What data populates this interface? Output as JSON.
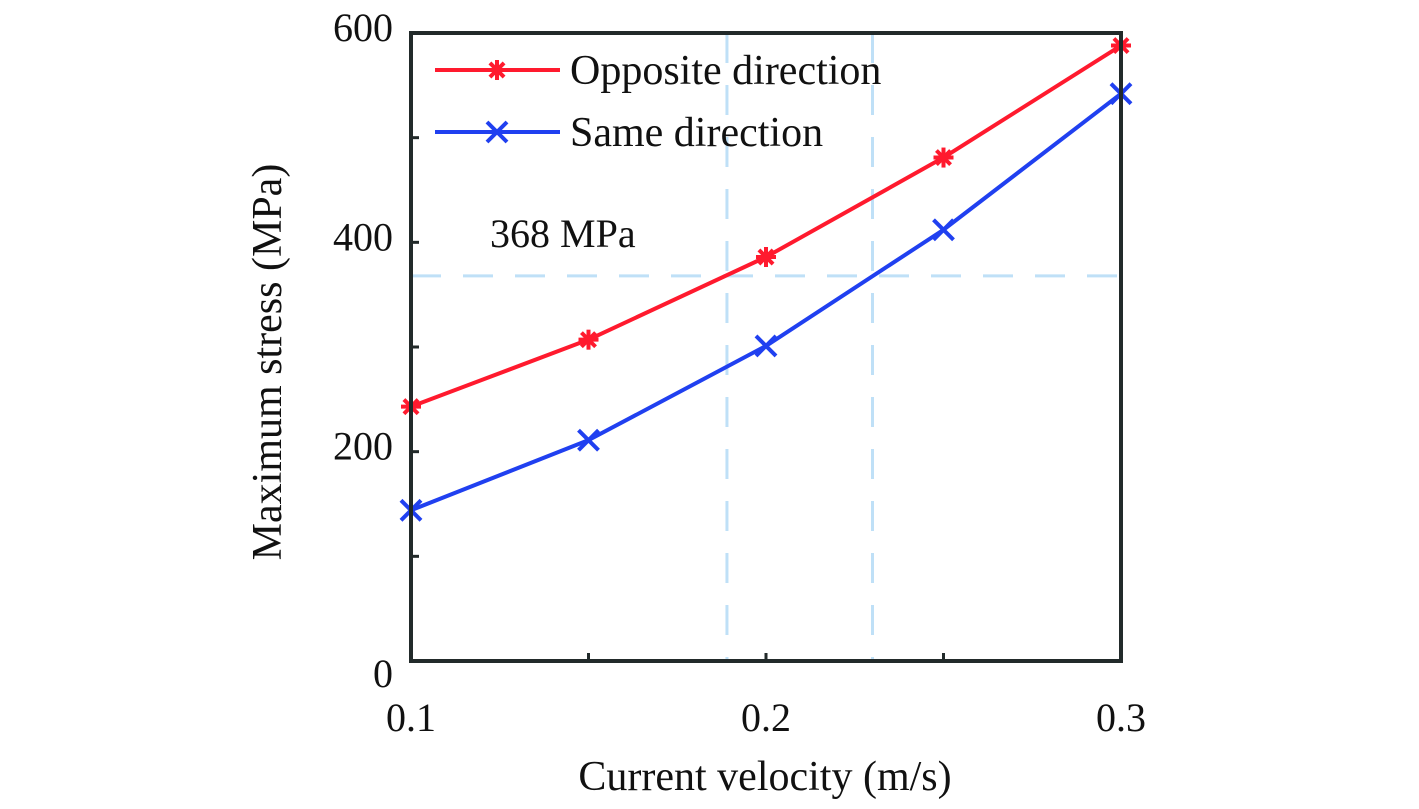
{
  "chart_data": {
    "type": "line",
    "title": "",
    "xlabel": "Current velocity (m/s)",
    "ylabel": "Maximum stress (MPa)",
    "xlim": [
      0.1,
      0.3
    ],
    "ylim": [
      0,
      600
    ],
    "x_ticks": [
      0.1,
      0.15,
      0.2,
      0.25,
      0.3
    ],
    "x_tick_labels": [
      "0.1",
      "0.2",
      "0.3"
    ],
    "x_tick_label_values": [
      0.1,
      0.2,
      0.3
    ],
    "y_ticks": [
      0,
      100,
      200,
      300,
      400,
      500,
      600
    ],
    "y_tick_labels": [
      "0",
      "200",
      "400",
      "600"
    ],
    "y_tick_label_values": [
      0,
      200,
      400,
      600
    ],
    "grid": false,
    "legend_position": "top-left",
    "x": [
      0.1,
      0.15,
      0.2,
      0.25,
      0.3
    ],
    "series": [
      {
        "name": "Opposite direction",
        "color": "#ff1a2e",
        "marker": "asterisk",
        "values": [
          243,
          307,
          386,
          481,
          588
        ]
      },
      {
        "name": "Same direction",
        "color": "#2040f0",
        "marker": "x",
        "values": [
          144,
          211,
          301,
          412,
          542
        ]
      }
    ],
    "reference_lines": {
      "color": "#bfe0f7",
      "horizontal": [
        {
          "y": 368
        }
      ],
      "vertical": [
        {
          "x": 0.189
        },
        {
          "x": 0.23
        }
      ]
    },
    "annotations": [
      {
        "text": "368 MPa",
        "x": 0.14,
        "y": 400
      }
    ]
  }
}
